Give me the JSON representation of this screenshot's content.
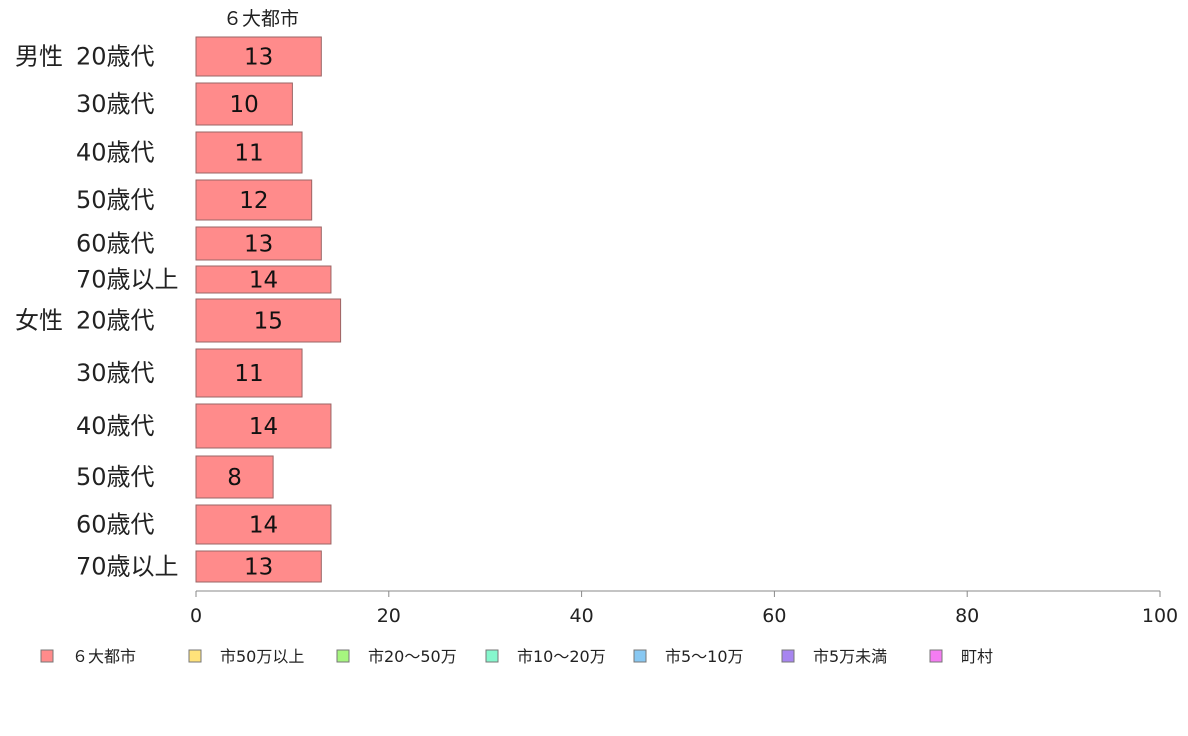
{
  "chart_data": {
    "type": "bar",
    "orientation": "horizontal",
    "stacked": true,
    "column_header": "６大都市",
    "groups": [
      {
        "label": "男性",
        "categories": [
          "20歳代",
          "30歳代",
          "40歳代",
          "50歳代",
          "60歳代",
          "70歳以上"
        ]
      },
      {
        "label": "女性",
        "categories": [
          "20歳代",
          "30歳代",
          "40歳代",
          "50歳代",
          "60歳代",
          "70歳以上"
        ]
      }
    ],
    "series": [
      {
        "name": "６大都市",
        "color": "#ff8b8b",
        "values": [
          13,
          10,
          11,
          12,
          13,
          14,
          15,
          11,
          14,
          8,
          14,
          13
        ]
      },
      {
        "name": "市50万以上",
        "color": "#ffe27a",
        "values": []
      },
      {
        "name": "市20～50万",
        "color": "#a6f57f",
        "values": []
      },
      {
        "name": "市10～20万",
        "color": "#86f7cd",
        "values": []
      },
      {
        "name": "市5～10万",
        "color": "#88c8f2",
        "values": []
      },
      {
        "name": "市5万未満",
        "color": "#a785f0",
        "values": []
      },
      {
        "name": "町村",
        "color": "#f47cf2",
        "values": []
      }
    ],
    "xlim": [
      0,
      100
    ],
    "xticks": [
      0,
      20,
      40,
      60,
      80,
      100
    ],
    "grid": false,
    "legend_position": "bottom"
  }
}
